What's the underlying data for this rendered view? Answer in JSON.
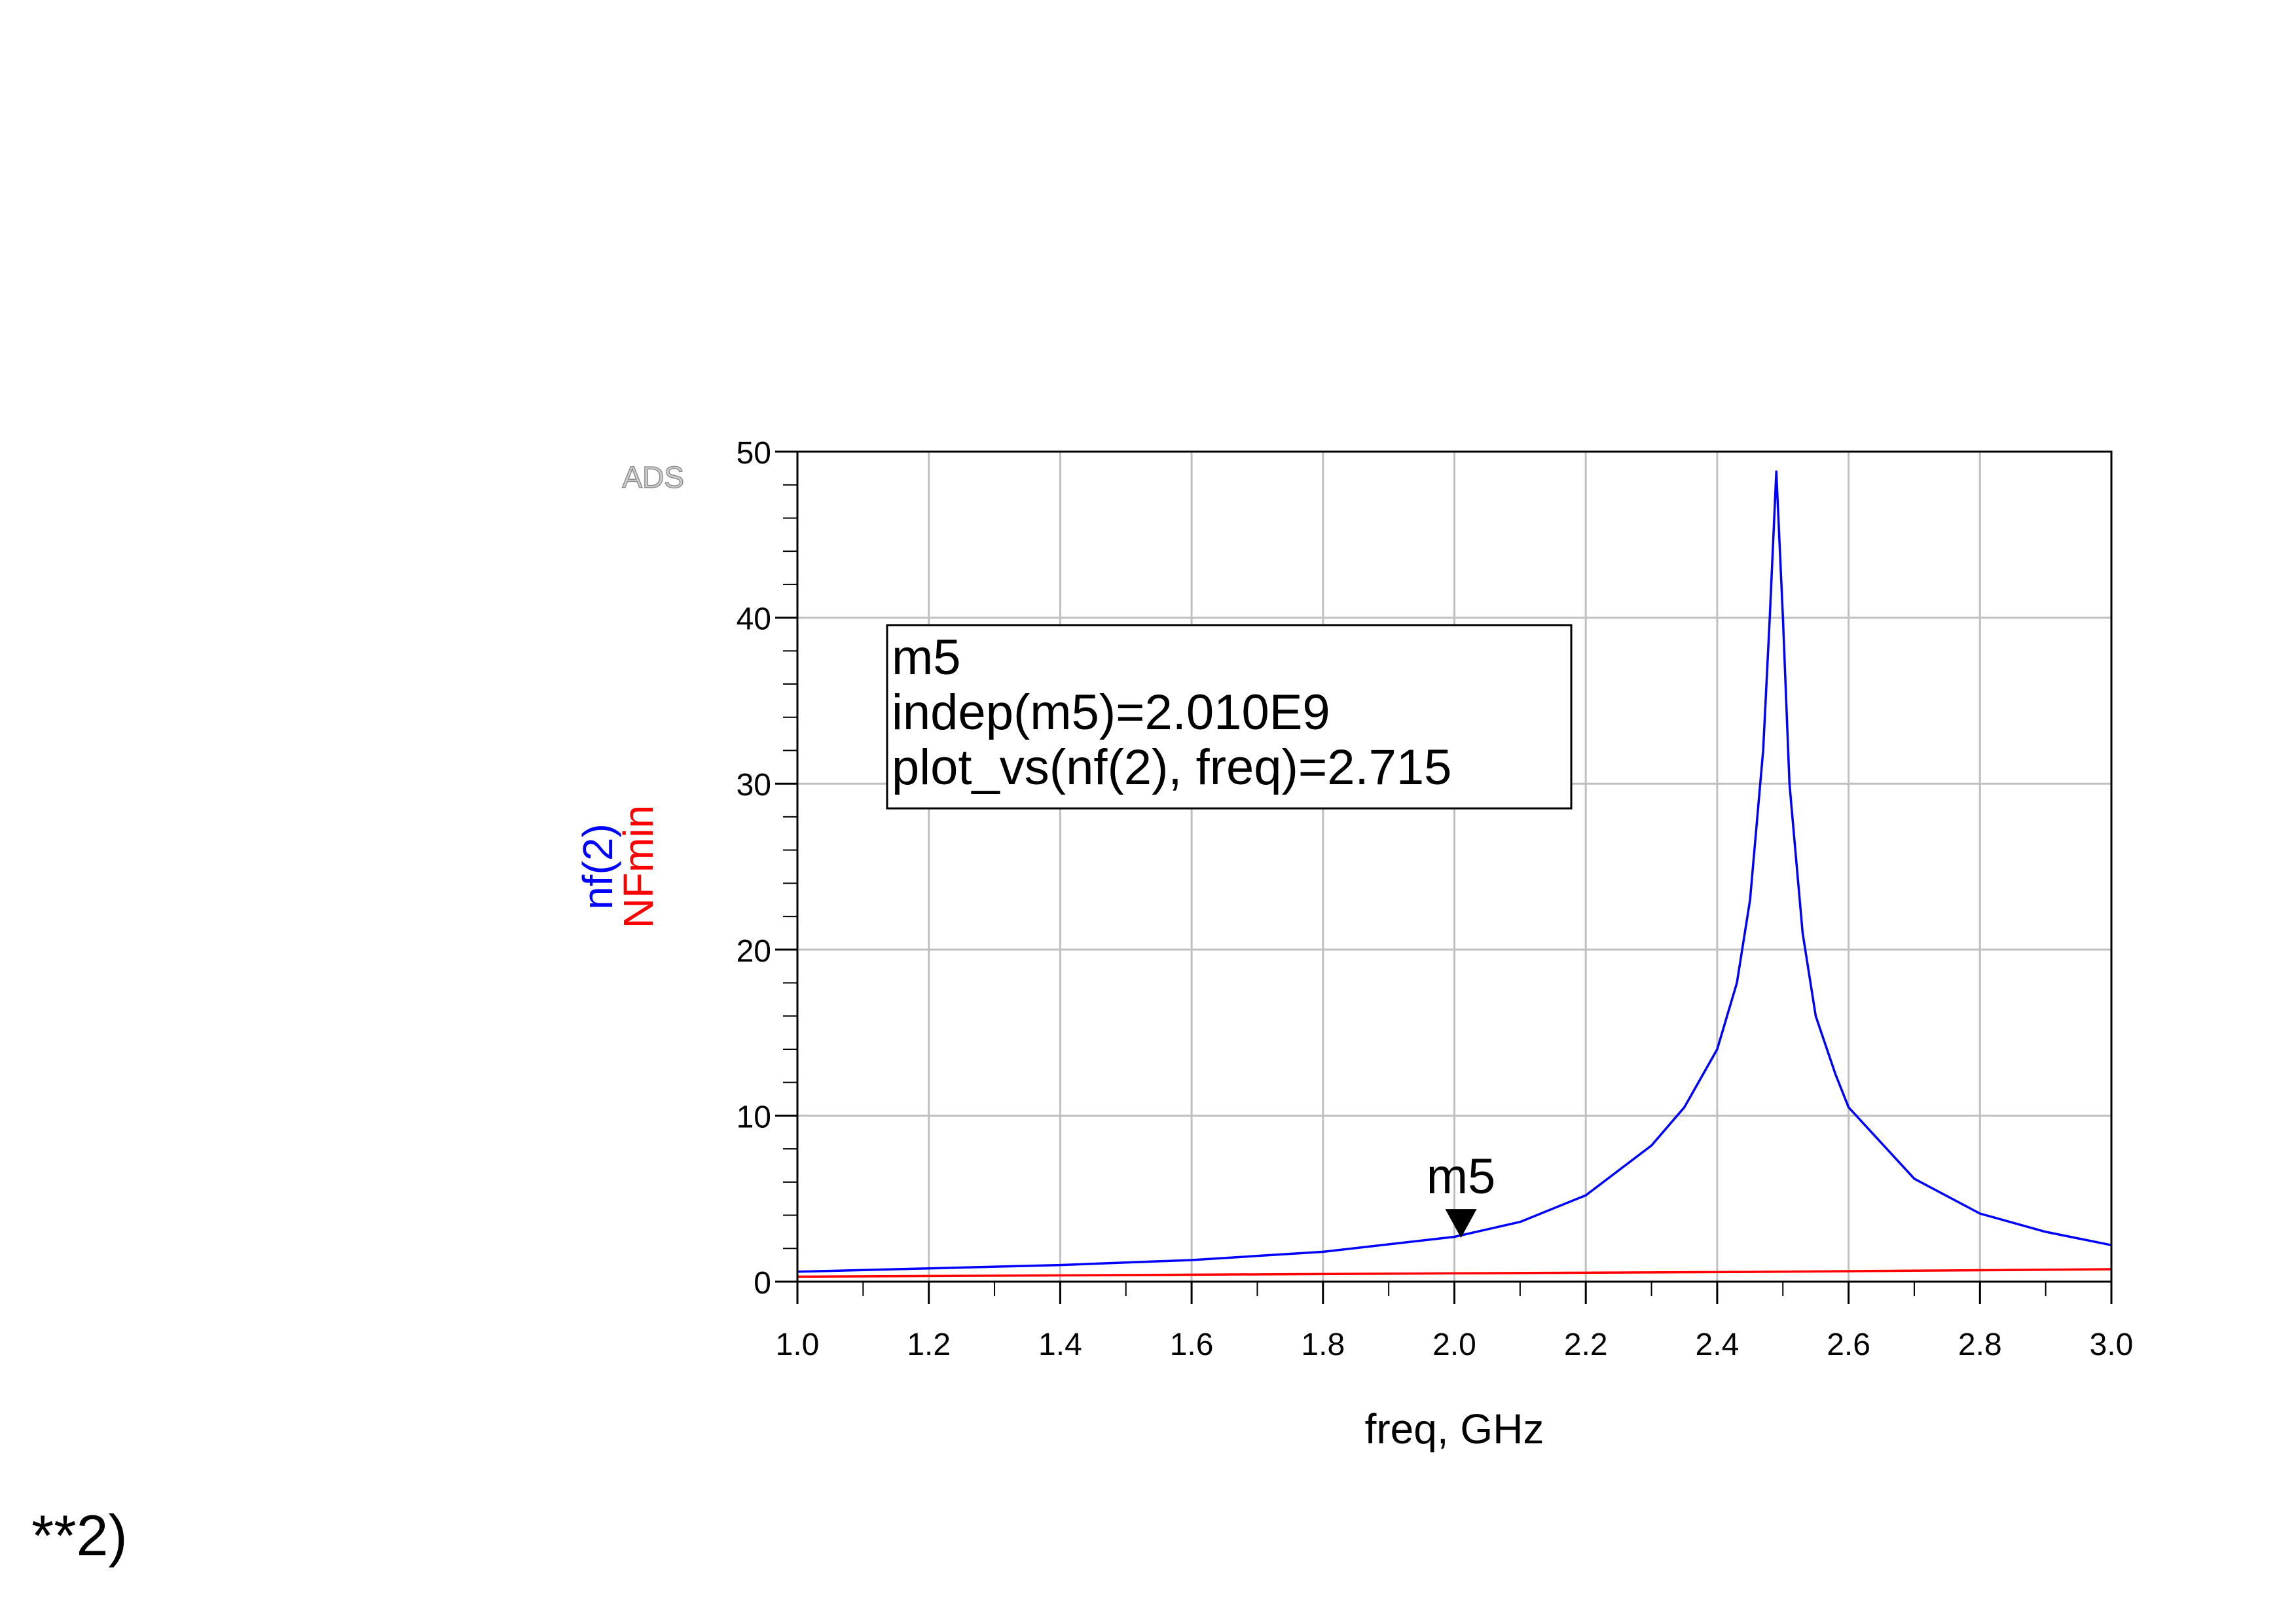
{
  "watermark": "ADS",
  "footer_text": "**2)",
  "chart_data": {
    "type": "line",
    "xlabel": "freq, GHz",
    "xlim": [
      1.0,
      3.0
    ],
    "ylim": [
      0,
      50
    ],
    "x_ticks": [
      "1.0",
      "1.2",
      "1.4",
      "1.6",
      "1.8",
      "2.0",
      "2.2",
      "2.4",
      "2.6",
      "2.8",
      "3.0"
    ],
    "y_ticks": [
      "0",
      "10",
      "20",
      "30",
      "40",
      "50"
    ],
    "grid": true,
    "ylabels": [
      {
        "text": "nf(2)",
        "color": "#0000ff"
      },
      {
        "text": "NFmin",
        "color": "#ff0000"
      }
    ],
    "series": [
      {
        "name": "nf(2)",
        "color": "#0000ff",
        "x": [
          1.0,
          1.2,
          1.4,
          1.6,
          1.8,
          2.0,
          2.1,
          2.2,
          2.3,
          2.35,
          2.4,
          2.43,
          2.45,
          2.47,
          2.48,
          2.49,
          2.5,
          2.51,
          2.53,
          2.55,
          2.58,
          2.6,
          2.7,
          2.8,
          2.9,
          3.0
        ],
        "y": [
          0.6,
          0.8,
          1.0,
          1.3,
          1.8,
          2.7,
          3.6,
          5.2,
          8.2,
          10.5,
          14.0,
          18.0,
          23.0,
          32.0,
          40.0,
          48.8,
          40.0,
          30.0,
          21.0,
          16.0,
          12.5,
          10.5,
          6.2,
          4.1,
          3.0,
          2.2
        ]
      },
      {
        "name": "NFmin",
        "color": "#ff0000",
        "x": [
          1.0,
          1.5,
          2.0,
          2.5,
          3.0
        ],
        "y": [
          0.3,
          0.4,
          0.5,
          0.6,
          0.75
        ]
      }
    ],
    "marker": {
      "name": "m5",
      "x": 2.01,
      "y": 2.715,
      "readout": [
        "m5",
        "indep(m5)=2.010E9",
        "plot_vs(nf(2), freq)=2.715"
      ]
    }
  }
}
